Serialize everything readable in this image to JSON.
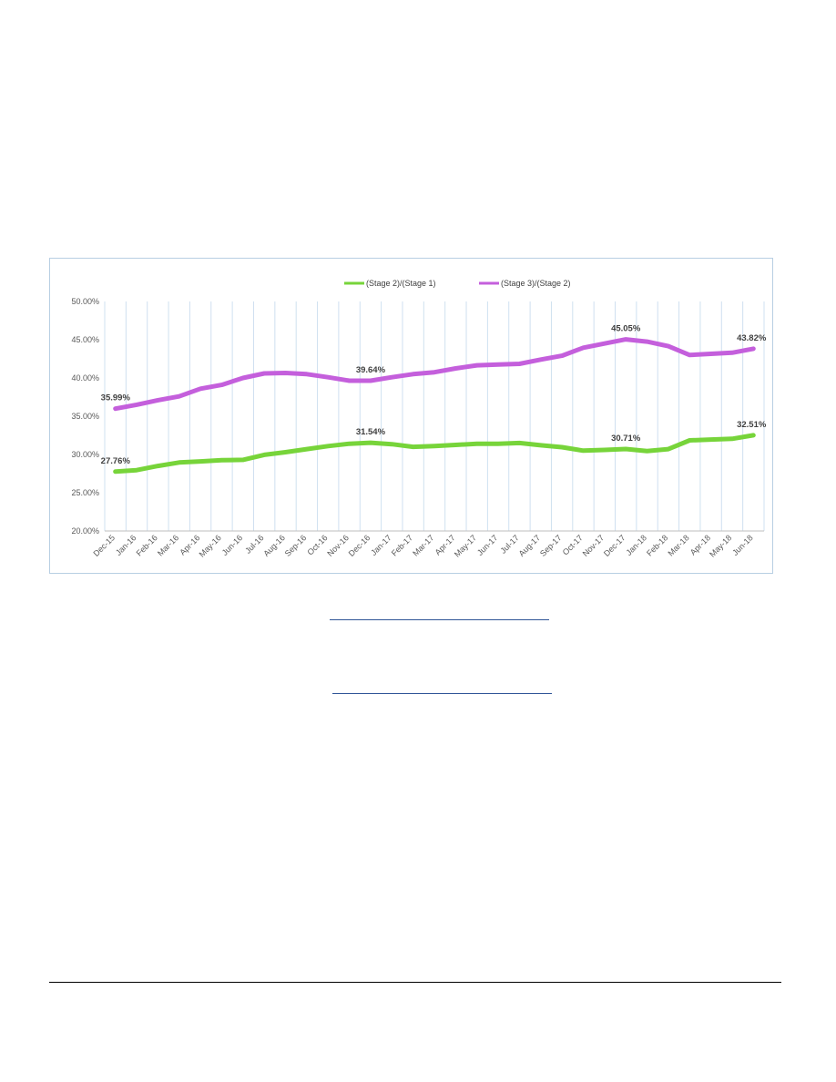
{
  "chart_data": {
    "type": "line",
    "title": "",
    "xlabel": "",
    "ylabel": "",
    "x": [
      "Dec-15",
      "Jan-16",
      "Feb-16",
      "Mar-16",
      "Apr-16",
      "May-16",
      "Jun-16",
      "Jul-16",
      "Aug-16",
      "Sep-16",
      "Oct-16",
      "Nov-16",
      "Dec-16",
      "Jan-17",
      "Feb-17",
      "Mar-17",
      "Apr-17",
      "May-17",
      "Jun-17",
      "Jul-17",
      "Aug-17",
      "Sep-17",
      "Oct-17",
      "Nov-17",
      "Dec-17",
      "Jan-18",
      "Feb-18",
      "Mar-18",
      "Apr-18",
      "May-18",
      "Jun-18"
    ],
    "ylim": [
      0.2,
      0.5
    ],
    "yticks": [
      0.2,
      0.25,
      0.3,
      0.35,
      0.4,
      0.45,
      0.5
    ],
    "ytick_labels": [
      "20.00%",
      "25.00%",
      "30.00%",
      "35.00%",
      "40.00%",
      "45.00%",
      "50.00%"
    ],
    "grid": "vertical",
    "legend_position": "top",
    "series": [
      {
        "name": "(Stage 2)/(Stage 1)",
        "color": "#77d43a",
        "values": [
          0.2776,
          0.2795,
          0.285,
          0.2895,
          0.291,
          0.2925,
          0.293,
          0.2995,
          0.303,
          0.307,
          0.311,
          0.314,
          0.3154,
          0.3135,
          0.31,
          0.311,
          0.3125,
          0.314,
          0.314,
          0.315,
          0.312,
          0.3095,
          0.305,
          0.306,
          0.3071,
          0.3045,
          0.307,
          0.3185,
          0.3195,
          0.3205,
          0.3251
        ],
        "annotations": [
          {
            "index": 0,
            "label": "27.76%"
          },
          {
            "index": 12,
            "label": "31.54%"
          },
          {
            "index": 24,
            "label": "30.71%"
          },
          {
            "index": 30,
            "label": "32.51%"
          }
        ]
      },
      {
        "name": "(Stage 3)/(Stage 2)",
        "color": "#c45fdc",
        "values": [
          0.3599,
          0.365,
          0.371,
          0.376,
          0.386,
          0.391,
          0.4,
          0.406,
          0.4065,
          0.405,
          0.401,
          0.3964,
          0.3964,
          0.401,
          0.405,
          0.4075,
          0.4125,
          0.4165,
          0.4175,
          0.4185,
          0.424,
          0.429,
          0.4395,
          0.445,
          0.4505,
          0.4475,
          0.4415,
          0.43,
          0.4315,
          0.433,
          0.4382
        ],
        "annotations": [
          {
            "index": 0,
            "label": "35.99%"
          },
          {
            "index": 12,
            "label": "39.64%"
          },
          {
            "index": 24,
            "label": "45.05%"
          },
          {
            "index": 30,
            "label": "43.82%"
          }
        ]
      }
    ]
  }
}
